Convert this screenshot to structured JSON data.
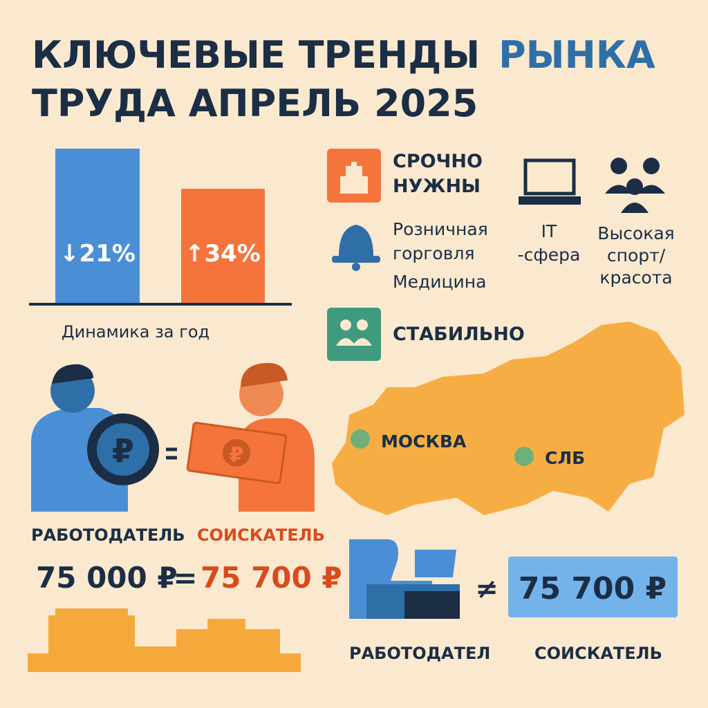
{
  "header": {
    "title_part1": "КЛЮЧЕВЫЕ ТРЕНДЫ",
    "title_highlight": "РЫНКА",
    "title_line2": "ТРУДА АПРЕЛЬ 2025"
  },
  "dynamics": {
    "bars": [
      {
        "label": "↓21%"
      },
      {
        "label": "↑34%"
      }
    ],
    "caption": "Динамика за год"
  },
  "urgent": {
    "title_lines": [
      "СРОЧНО",
      "НУЖНЫ"
    ],
    "sectors": [
      {
        "lines": [
          "Розничная",
          "горговля",
          "Медицина"
        ]
      },
      {
        "lines": [
          "IT",
          "-сфера"
        ]
      },
      {
        "lines": [
          "Высокая",
          "спорт/",
          "красота"
        ]
      }
    ]
  },
  "stable": {
    "title": "СТАБИЛЬНО"
  },
  "map": {
    "cities": [
      "МОСКВА",
      "СЛБ"
    ]
  },
  "salary": {
    "employer": "РАБОТОДАТЕЛЬ",
    "seeker": "СОИСКАТЕЛЬ",
    "employer_amount": "75 000 ₽",
    "sign": "=",
    "seeker_amount": "75 700 ₽"
  },
  "mismatch": {
    "sign": "≠",
    "amount": "75 700 ₽",
    "employer": "РАБОТОДАТЕЛ",
    "seeker": "СОИСКАТЕЛЬ"
  }
}
